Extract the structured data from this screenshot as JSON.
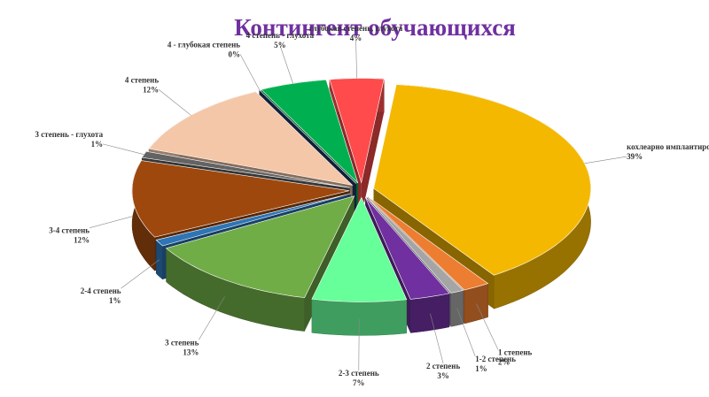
{
  "chart_data": {
    "type": "pie",
    "title": "Контингент обучающихся",
    "categories": [
      "кохлеарно имплантированные",
      "1 степень",
      "1-2 степень",
      "2 степень",
      "2-3 степень",
      "3 степень",
      "2-4 степень",
      "3-4 степень",
      "3 степень - глухота",
      "4 степень",
      "4 - глубокая степень",
      "4 степень - глухота",
      "глубокая степень, глухота"
    ],
    "values": [
      39,
      2,
      1,
      3,
      7,
      13,
      1,
      12,
      1,
      12,
      0,
      5,
      4
    ],
    "value_labels": [
      "39%",
      "2%",
      "1%",
      "3%",
      "7%",
      "13%",
      "1%",
      "12%",
      "1%",
      "12%",
      "0%",
      "5%",
      "4%"
    ],
    "colors": [
      "#f5b800",
      "#ed7d31",
      "#a5a5a5",
      "#7030a0",
      "#66ff99",
      "#70ad47",
      "#2e75b6",
      "#9e480e",
      "#636363",
      "#f4c7a8",
      "#1f3864",
      "#00b050",
      "#ff4b4b"
    ]
  }
}
